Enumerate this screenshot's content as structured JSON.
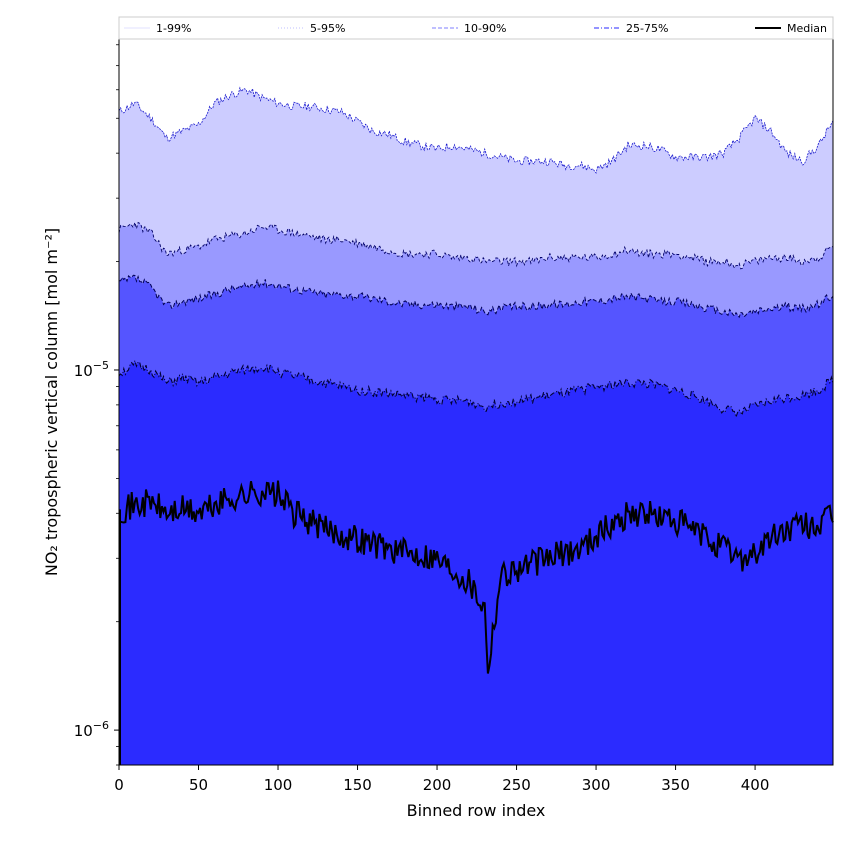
{
  "chart_data": {
    "type": "area",
    "title": "",
    "xlabel": "Binned row index",
    "ylabel": "NO₂ tropospheric vertical column [mol m⁻²]",
    "yscale": "log",
    "xlim": [
      0,
      449
    ],
    "ylim": [
      8e-07,
      8.3e-05
    ],
    "xticks": [
      0,
      50,
      100,
      150,
      200,
      250,
      300,
      350,
      400
    ],
    "xtick_labels": [
      "0",
      "50",
      "100",
      "150",
      "200",
      "250",
      "300",
      "350",
      "400"
    ],
    "yticks": [
      1e-06,
      1e-05
    ],
    "ytick_labels": [
      {
        "base": "10",
        "exp": "−6"
      },
      {
        "base": "10",
        "exp": "−5"
      }
    ],
    "grid": false,
    "legend_position": "top, above plot",
    "legend": [
      {
        "label": "1-99%",
        "color": "#e6e6ff",
        "style": "solid"
      },
      {
        "label": "5-95%",
        "color": "#ccccff",
        "style": "dotted"
      },
      {
        "label": "10-90%",
        "color": "#9999ff",
        "style": "dashed"
      },
      {
        "label": "25-75%",
        "color": "#5555ff",
        "style": "dashdot"
      },
      {
        "label": "Median",
        "color": "#000000",
        "style": "solid"
      }
    ],
    "band_colors": {
      "p95_to_top": "#ccccff",
      "p90_to_p95": "#9999ff",
      "p75_to_p90": "#5555ff",
      "below_p75": "#2b2bff"
    },
    "series": [
      {
        "name": "95%",
        "x": [
          0,
          10,
          20,
          30,
          40,
          50,
          60,
          70,
          80,
          90,
          100,
          110,
          120,
          130,
          140,
          150,
          160,
          170,
          180,
          190,
          200,
          210,
          220,
          230,
          240,
          250,
          260,
          270,
          280,
          290,
          300,
          310,
          320,
          330,
          340,
          350,
          360,
          370,
          380,
          390,
          400,
          410,
          420,
          430,
          440,
          449
        ],
        "values": [
          5.2e-05,
          5.5e-05,
          5e-05,
          4.4e-05,
          4.6e-05,
          4.8e-05,
          5.5e-05,
          5.8e-05,
          6e-05,
          5.7e-05,
          5.5e-05,
          5.4e-05,
          5.4e-05,
          5.3e-05,
          5.2e-05,
          4.9e-05,
          4.6e-05,
          4.5e-05,
          4.3e-05,
          4.2e-05,
          4.1e-05,
          4.2e-05,
          4.1e-05,
          4e-05,
          3.9e-05,
          3.8e-05,
          3.8e-05,
          3.8e-05,
          3.7e-05,
          3.7e-05,
          3.6e-05,
          3.8e-05,
          4.2e-05,
          4.2e-05,
          4.1e-05,
          3.9e-05,
          3.9e-05,
          3.9e-05,
          4e-05,
          4.4e-05,
          5e-05,
          4.6e-05,
          4e-05,
          3.8e-05,
          4.2e-05,
          4.9e-05
        ]
      },
      {
        "name": "90%",
        "x": [
          0,
          10,
          20,
          30,
          40,
          50,
          60,
          70,
          80,
          90,
          100,
          110,
          120,
          130,
          140,
          150,
          160,
          170,
          180,
          190,
          200,
          210,
          220,
          230,
          240,
          250,
          260,
          270,
          280,
          290,
          300,
          310,
          320,
          330,
          340,
          350,
          360,
          370,
          380,
          390,
          400,
          410,
          420,
          430,
          440,
          449
        ],
        "values": [
          2.45e-05,
          2.55e-05,
          2.4e-05,
          2.1e-05,
          2.15e-05,
          2.2e-05,
          2.3e-05,
          2.35e-05,
          2.4e-05,
          2.5e-05,
          2.45e-05,
          2.4e-05,
          2.35e-05,
          2.3e-05,
          2.3e-05,
          2.25e-05,
          2.2e-05,
          2.15e-05,
          2.1e-05,
          2.1e-05,
          2.1e-05,
          2.05e-05,
          2.05e-05,
          2e-05,
          2e-05,
          2e-05,
          2e-05,
          2.05e-05,
          2.05e-05,
          2.05e-05,
          2.05e-05,
          2.1e-05,
          2.15e-05,
          2.1e-05,
          2.1e-05,
          2.1e-05,
          2.05e-05,
          2e-05,
          2e-05,
          1.95e-05,
          2e-05,
          2.05e-05,
          2.05e-05,
          2e-05,
          2.05e-05,
          2.2e-05
        ]
      },
      {
        "name": "75%",
        "x": [
          0,
          10,
          20,
          30,
          40,
          50,
          60,
          70,
          80,
          90,
          100,
          110,
          120,
          130,
          140,
          150,
          160,
          170,
          180,
          190,
          200,
          210,
          220,
          230,
          240,
          250,
          260,
          270,
          280,
          290,
          300,
          310,
          320,
          330,
          340,
          350,
          360,
          370,
          380,
          390,
          400,
          410,
          420,
          430,
          440,
          449
        ],
        "values": [
          1.75e-05,
          1.8e-05,
          1.7e-05,
          1.5e-05,
          1.55e-05,
          1.58e-05,
          1.62e-05,
          1.68e-05,
          1.7e-05,
          1.75e-05,
          1.72e-05,
          1.68e-05,
          1.65e-05,
          1.62e-05,
          1.62e-05,
          1.6e-05,
          1.58e-05,
          1.55e-05,
          1.52e-05,
          1.52e-05,
          1.52e-05,
          1.5e-05,
          1.5e-05,
          1.45e-05,
          1.48e-05,
          1.5e-05,
          1.5e-05,
          1.52e-05,
          1.52e-05,
          1.55e-05,
          1.55e-05,
          1.58e-05,
          1.6e-05,
          1.58e-05,
          1.55e-05,
          1.55e-05,
          1.52e-05,
          1.48e-05,
          1.45e-05,
          1.42e-05,
          1.45e-05,
          1.48e-05,
          1.5e-05,
          1.48e-05,
          1.52e-05,
          1.62e-05
        ]
      },
      {
        "name": "25%",
        "x": [
          0,
          10,
          20,
          30,
          40,
          50,
          60,
          70,
          80,
          90,
          100,
          110,
          120,
          130,
          140,
          150,
          160,
          170,
          180,
          190,
          200,
          210,
          220,
          230,
          240,
          250,
          260,
          270,
          280,
          290,
          300,
          310,
          320,
          330,
          340,
          350,
          360,
          370,
          380,
          390,
          400,
          410,
          420,
          430,
          440,
          449
        ],
        "values": [
          9.8e-06,
          1.03e-05,
          1e-05,
          9.2e-06,
          9.5e-06,
          9.2e-06,
          9.5e-06,
          9.8e-06,
          1e-05,
          1.02e-05,
          9.9e-06,
          9.6e-06,
          9.4e-06,
          9.2e-06,
          9e-06,
          8.8e-06,
          8.7e-06,
          8.6e-06,
          8.5e-06,
          8.4e-06,
          8.3e-06,
          8.2e-06,
          8.2e-06,
          7.9e-06,
          8.1e-06,
          8.2e-06,
          8.3e-06,
          8.5e-06,
          8.6e-06,
          8.8e-06,
          9e-06,
          9.1e-06,
          9.2e-06,
          9.2e-06,
          9e-06,
          8.8e-06,
          8.5e-06,
          8.2e-06,
          7.8e-06,
          7.6e-06,
          7.9e-06,
          8.2e-06,
          8.4e-06,
          8.5e-06,
          8.8e-06,
          9.4e-06
        ]
      },
      {
        "name": "Median",
        "x": [
          0,
          10,
          20,
          30,
          40,
          50,
          60,
          70,
          80,
          90,
          100,
          110,
          120,
          130,
          140,
          150,
          160,
          170,
          180,
          190,
          200,
          210,
          220,
          230,
          232,
          240,
          250,
          260,
          270,
          280,
          290,
          300,
          310,
          320,
          330,
          340,
          350,
          360,
          370,
          380,
          390,
          400,
          410,
          420,
          430,
          440,
          449
        ],
        "values": [
          4.1e-06,
          4.2e-06,
          4.3e-06,
          4e-06,
          4.1e-06,
          4e-06,
          4.2e-06,
          4.4e-06,
          4.5e-06,
          4.6e-06,
          4.5e-06,
          4e-06,
          3.8e-06,
          3.6e-06,
          3.5e-06,
          3.4e-06,
          3.3e-06,
          3.2e-06,
          3.1e-06,
          3.1e-06,
          3e-06,
          2.8e-06,
          2.6e-06,
          2.2e-06,
          1.5e-06,
          2.7e-06,
          2.8e-06,
          2.9e-06,
          3e-06,
          3.1e-06,
          3.2e-06,
          3.5e-06,
          3.7e-06,
          4e-06,
          4e-06,
          3.9e-06,
          3.8e-06,
          3.6e-06,
          3.4e-06,
          3.2e-06,
          3e-06,
          3.1e-06,
          3.4e-06,
          3.6e-06,
          3.7e-06,
          3.7e-06,
          3.9e-06
        ]
      }
    ]
  }
}
